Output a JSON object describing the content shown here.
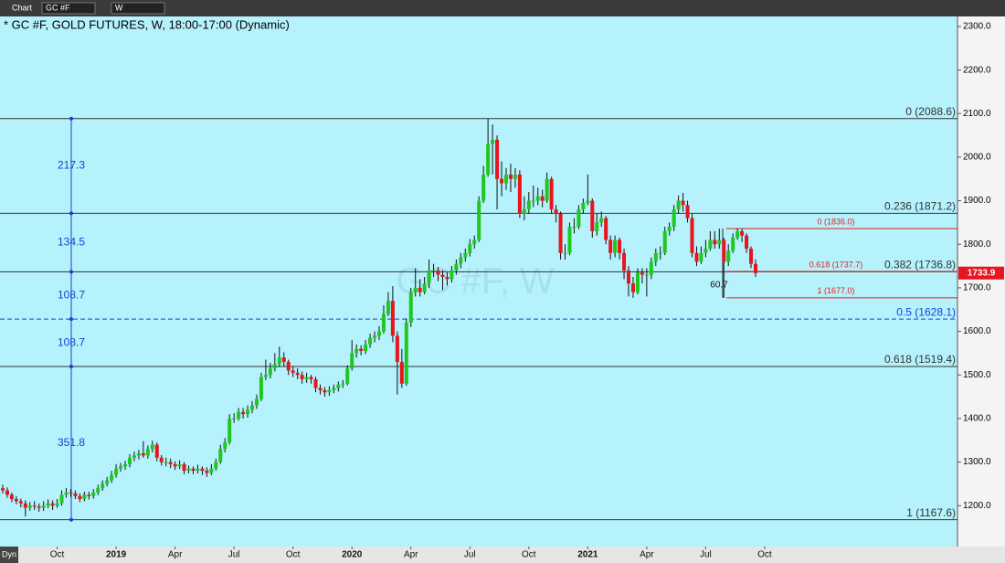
{
  "toolbar": {
    "tab": "Chart",
    "symbol": "GC #F",
    "interval": "W"
  },
  "footer": "Dyn",
  "chart_data": {
    "type": "candlestick",
    "title": "* GC #F, GOLD FUTURES, W, 18:00-17:00 (Dynamic)",
    "watermark": "GC #F, W",
    "up_color": "#1ec81e",
    "down_color": "#e8141e",
    "background": "#b5f2fc",
    "ylim": [
      1106,
      2323
    ],
    "yticks": [
      {
        "value": 1200,
        "label": "1200.0"
      },
      {
        "value": 1300,
        "label": "1300.0"
      },
      {
        "value": 1400,
        "label": "1400.0"
      },
      {
        "value": 1500,
        "label": "1500.0"
      },
      {
        "value": 1600,
        "label": "1600.0"
      },
      {
        "value": 1700,
        "label": "1700.0"
      },
      {
        "value": 1800,
        "label": "1800.0"
      },
      {
        "value": 1900,
        "label": "1900.0"
      },
      {
        "value": 2000,
        "label": "2000.0"
      },
      {
        "value": 2100,
        "label": "2100.0"
      },
      {
        "value": 2200,
        "label": "2200.0"
      },
      {
        "value": 2300,
        "label": "2300.0"
      }
    ],
    "categories": [
      null,
      null,
      null,
      null,
      null,
      null,
      null,
      null,
      null,
      null,
      null,
      null,
      "Oct",
      null,
      null,
      null,
      null,
      null,
      null,
      null,
      null,
      null,
      null,
      null,
      null,
      "2019",
      null,
      null,
      null,
      null,
      null,
      null,
      null,
      null,
      null,
      null,
      null,
      null,
      "Apr",
      null,
      null,
      null,
      null,
      null,
      null,
      null,
      null,
      null,
      null,
      null,
      null,
      "Jul",
      null,
      null,
      null,
      null,
      null,
      null,
      null,
      null,
      null,
      null,
      null,
      null,
      "Oct",
      null,
      null,
      null,
      null,
      null,
      null,
      null,
      null,
      null,
      null,
      null,
      null,
      "2020",
      null,
      null,
      null,
      null,
      null,
      null,
      null,
      null,
      null,
      null,
      null,
      null,
      "Apr",
      null,
      null,
      null,
      null,
      null,
      null,
      null,
      null,
      null,
      null,
      null,
      null,
      "Jul",
      null,
      null,
      null,
      null,
      null,
      null,
      null,
      null,
      null,
      null,
      null,
      null,
      "Oct",
      null,
      null,
      null,
      null,
      null,
      null,
      null,
      null,
      null,
      null,
      null,
      null,
      "2021",
      null,
      null,
      null,
      null,
      null,
      null,
      null,
      null,
      null,
      null,
      null,
      null,
      "Apr",
      null,
      null,
      null,
      null,
      null,
      null,
      null,
      null,
      null,
      null,
      null,
      null,
      "Jul",
      null,
      null,
      null,
      null,
      null,
      null,
      null,
      null,
      null,
      null,
      null,
      null,
      "Oct"
    ],
    "open": [
      1240,
      1235,
      1225,
      1215,
      1210,
      1205,
      1195,
      1200,
      1198,
      1195,
      1200,
      1205,
      1200,
      1205,
      1225,
      1230,
      1228,
      1222,
      1215,
      1225,
      1222,
      1230,
      1240,
      1250,
      1258,
      1270,
      1285,
      1290,
      1295,
      1310,
      1315,
      1320,
      1315,
      1330,
      1340,
      1310,
      1300,
      1300,
      1295,
      1290,
      1295,
      1280,
      1285,
      1280,
      1285,
      1280,
      1275,
      1285,
      1300,
      1330,
      1345,
      1400,
      1400,
      1415,
      1410,
      1420,
      1430,
      1445,
      1495,
      1500,
      1515,
      1525,
      1540,
      1530,
      1510,
      1505,
      1500,
      1490,
      1495,
      1490,
      1470,
      1465,
      1460,
      1465,
      1470,
      1478,
      1480,
      1515,
      1550,
      1560,
      1555,
      1570,
      1585,
      1590,
      1600,
      1640,
      1670,
      1590,
      1530,
      1480,
      1620,
      1690,
      1700,
      1690,
      1710,
      1740,
      1740,
      1730,
      1725,
      1720,
      1740,
      1755,
      1770,
      1780,
      1800,
      1810,
      1900,
      1960,
      2030,
      2040,
      1950,
      1940,
      1960,
      1950,
      1960,
      1870,
      1880,
      1900,
      1900,
      1910,
      1900,
      1950,
      1880,
      1870,
      1780,
      1780,
      1840,
      1840,
      1880,
      1895,
      1900,
      1830,
      1850,
      1860,
      1810,
      1780,
      1810,
      1780,
      1740,
      1710,
      1690,
      1735,
      1730,
      1730,
      1760,
      1780,
      1780,
      1830,
      1840,
      1880,
      1900,
      1890,
      1860,
      1780,
      1760,
      1780,
      1790,
      1810,
      1800,
      1810,
      1760,
      1785,
      1815,
      1830,
      1820,
      1790,
      1755,
      null,
      null
    ],
    "high": [
      1248,
      1242,
      1230,
      1222,
      1216,
      1212,
      1208,
      1210,
      1205,
      1210,
      1214,
      1212,
      1215,
      1235,
      1240,
      1238,
      1235,
      1228,
      1232,
      1232,
      1238,
      1248,
      1258,
      1266,
      1280,
      1295,
      1298,
      1303,
      1318,
      1324,
      1328,
      1348,
      1338,
      1349,
      1345,
      1316,
      1310,
      1308,
      1302,
      1304,
      1300,
      1292,
      1290,
      1294,
      1290,
      1288,
      1295,
      1308,
      1340,
      1355,
      1410,
      1412,
      1424,
      1424,
      1430,
      1440,
      1455,
      1505,
      1535,
      1528,
      1550,
      1565,
      1552,
      1535,
      1520,
      1515,
      1508,
      1505,
      1500,
      1496,
      1478,
      1472,
      1474,
      1478,
      1485,
      1488,
      1522,
      1580,
      1570,
      1568,
      1580,
      1595,
      1600,
      1612,
      1660,
      1690,
      1704,
      1600,
      1560,
      1630,
      1700,
      1745,
      1720,
      1725,
      1765,
      1755,
      1748,
      1740,
      1735,
      1750,
      1765,
      1780,
      1790,
      1812,
      1820,
      1910,
      1980,
      2088,
      2075,
      2050,
      1990,
      1975,
      1985,
      1975,
      1970,
      1910,
      1920,
      1935,
      1930,
      1925,
      1965,
      1955,
      1890,
      1875,
      1800,
      1850,
      1860,
      1890,
      1905,
      1960,
      1905,
      1870,
      1875,
      1865,
      1820,
      1820,
      1815,
      1790,
      1750,
      1725,
      1745,
      1745,
      1745,
      1770,
      1790,
      1795,
      1840,
      1850,
      1890,
      1912,
      1918,
      1900,
      1870,
      1795,
      1795,
      1810,
      1830,
      1830,
      1836,
      1815,
      1800,
      1825,
      1836,
      1835,
      1825,
      1795,
      1765,
      null,
      null
    ],
    "low": [
      1228,
      1218,
      1208,
      1203,
      1196,
      1175,
      1188,
      1190,
      1186,
      1188,
      1194,
      1190,
      1195,
      1200,
      1218,
      1220,
      1215,
      1208,
      1210,
      1214,
      1216,
      1224,
      1234,
      1244,
      1252,
      1264,
      1278,
      1282,
      1288,
      1302,
      1306,
      1310,
      1308,
      1322,
      1302,
      1292,
      1290,
      1286,
      1282,
      1284,
      1272,
      1274,
      1272,
      1274,
      1270,
      1266,
      1270,
      1280,
      1296,
      1322,
      1340,
      1390,
      1395,
      1400,
      1402,
      1412,
      1422,
      1440,
      1488,
      1492,
      1508,
      1518,
      1520,
      1500,
      1495,
      1490,
      1480,
      1482,
      1480,
      1460,
      1455,
      1450,
      1452,
      1458,
      1462,
      1470,
      1476,
      1510,
      1540,
      1545,
      1548,
      1562,
      1575,
      1580,
      1595,
      1635,
      1575,
      1455,
      1470,
      1475,
      1610,
      1680,
      1680,
      1685,
      1700,
      1725,
      1715,
      1695,
      1705,
      1712,
      1730,
      1745,
      1760,
      1772,
      1790,
      1805,
      1895,
      1955,
      1960,
      1880,
      1910,
      1925,
      1920,
      1930,
      1860,
      1855,
      1870,
      1885,
      1890,
      1885,
      1895,
      1870,
      1850,
      1765,
      1765,
      1775,
      1825,
      1835,
      1870,
      1890,
      1815,
      1820,
      1840,
      1800,
      1765,
      1770,
      1765,
      1720,
      1680,
      1677,
      1685,
      1710,
      1680,
      1720,
      1750,
      1765,
      1775,
      1820,
      1830,
      1870,
      1875,
      1850,
      1770,
      1750,
      1755,
      1770,
      1785,
      1790,
      1790,
      1677,
      1750,
      1780,
      1810,
      1805,
      1780,
      1745,
      1725,
      null,
      null
    ],
    "close": [
      1235,
      1225,
      1215,
      1210,
      1205,
      1195,
      1200,
      1198,
      1195,
      1200,
      1205,
      1200,
      1205,
      1225,
      1230,
      1228,
      1222,
      1215,
      1225,
      1222,
      1230,
      1240,
      1250,
      1258,
      1270,
      1285,
      1290,
      1295,
      1310,
      1315,
      1320,
      1315,
      1330,
      1340,
      1310,
      1300,
      1300,
      1295,
      1290,
      1295,
      1280,
      1285,
      1280,
      1285,
      1280,
      1275,
      1285,
      1300,
      1330,
      1345,
      1400,
      1400,
      1415,
      1410,
      1420,
      1430,
      1445,
      1495,
      1500,
      1515,
      1525,
      1540,
      1530,
      1510,
      1505,
      1500,
      1490,
      1495,
      1490,
      1470,
      1465,
      1460,
      1465,
      1470,
      1478,
      1480,
      1515,
      1550,
      1560,
      1555,
      1570,
      1585,
      1590,
      1600,
      1640,
      1670,
      1590,
      1530,
      1480,
      1620,
      1690,
      1700,
      1690,
      1710,
      1740,
      1740,
      1730,
      1725,
      1720,
      1740,
      1755,
      1770,
      1780,
      1800,
      1810,
      1900,
      1960,
      2030,
      2040,
      1950,
      1940,
      1960,
      1950,
      1960,
      1870,
      1880,
      1900,
      1900,
      1910,
      1900,
      1950,
      1880,
      1870,
      1780,
      1780,
      1840,
      1840,
      1880,
      1895,
      1900,
      1830,
      1850,
      1860,
      1810,
      1780,
      1810,
      1780,
      1740,
      1710,
      1690,
      1735,
      1730,
      1730,
      1760,
      1780,
      1780,
      1830,
      1840,
      1880,
      1900,
      1890,
      1860,
      1780,
      1760,
      1780,
      1790,
      1810,
      1800,
      1810,
      1760,
      1785,
      1815,
      1830,
      1820,
      1790,
      1755,
      1733.9,
      null,
      null
    ],
    "last_price": 1733.9,
    "fib_levels": [
      {
        "label": "0 (2088.6)",
        "value": 2088.6,
        "color": "#333333"
      },
      {
        "label": "0.236 (1871.2)",
        "value": 1871.2,
        "color": "#333333"
      },
      {
        "label": "0.382 (1736.8)",
        "value": 1736.8,
        "color": "#333333"
      },
      {
        "label": "0.5 (1628.1)",
        "value": 1628.1,
        "color": "#1a3fd0",
        "dashed": true
      },
      {
        "label": "0.618 (1519.4)",
        "value": 1519.4,
        "color": "#333333"
      },
      {
        "label": "1 (1167.6)",
        "value": 1167.6,
        "color": "#333333"
      }
    ],
    "measurements": [
      217.3,
      134.5,
      108.7,
      108.7,
      351.8
    ],
    "measure_color": "#1a3fd0",
    "minor_fib_levels": [
      {
        "label": "0 (1836.0)",
        "value": 1836.0
      },
      {
        "label": "0.618 (1737.7)",
        "value": 1737.7
      },
      {
        "label": "1 (1677.0)",
        "value": 1677.0
      }
    ],
    "minor_fib_color": "#e02020",
    "minor_range_label": 60.7
  }
}
